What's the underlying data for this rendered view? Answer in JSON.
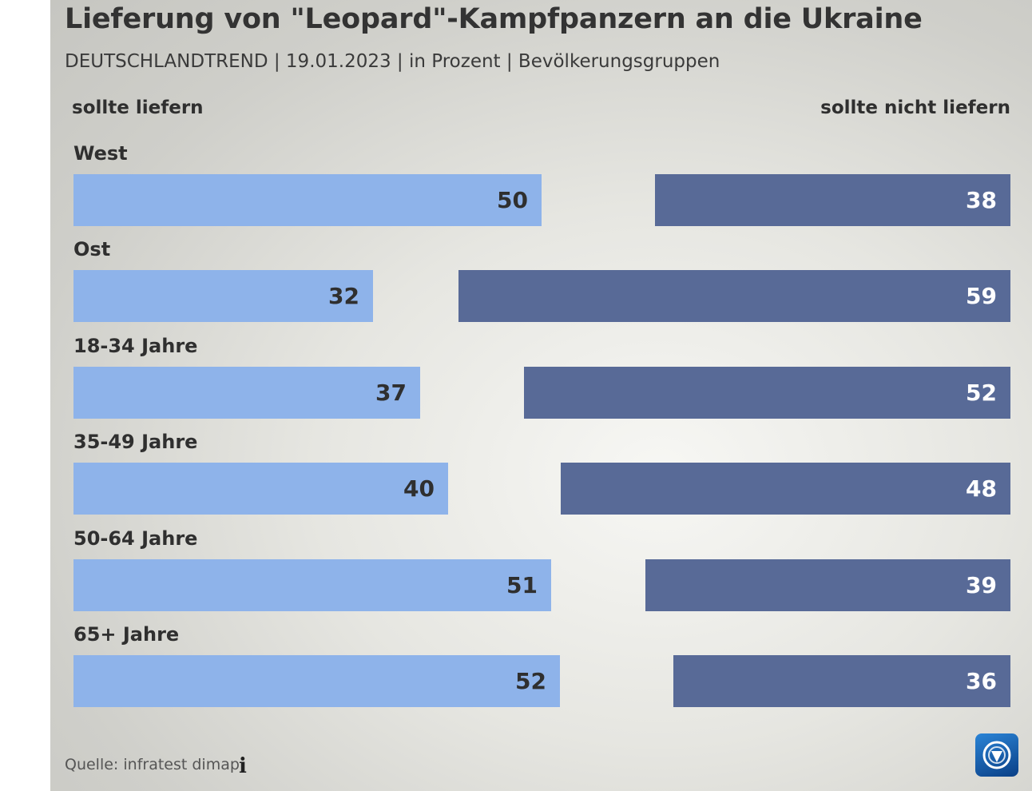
{
  "chart_data": {
    "type": "bar",
    "orientation": "horizontal-diverging",
    "title": "Lieferung von \"Leopard\"-Kampfpanzern an die Ukraine",
    "subtitle": "DEUTSCHLANDTREND | 19.01.2023 | in Prozent | Bevölkerungsgruppen",
    "categories": [
      "West",
      "Ost",
      "18-34 Jahre",
      "35-49 Jahre",
      "50-64 Jahre",
      "65+ Jahre"
    ],
    "series": [
      {
        "name": "sollte liefern",
        "color": "#8eb3ea",
        "values": [
          50,
          32,
          37,
          40,
          51,
          52
        ]
      },
      {
        "name": "sollte nicht liefern",
        "color": "#586a97",
        "values": [
          38,
          59,
          52,
          48,
          39,
          36
        ]
      }
    ],
    "legend": {
      "left_label": "sollte liefern",
      "right_label": "sollte nicht liefern"
    },
    "unit": "Prozent",
    "source": "Quelle: infratest dimap"
  },
  "icons": {
    "info": "info-icon",
    "logo": "tagesschau-logo-icon"
  }
}
